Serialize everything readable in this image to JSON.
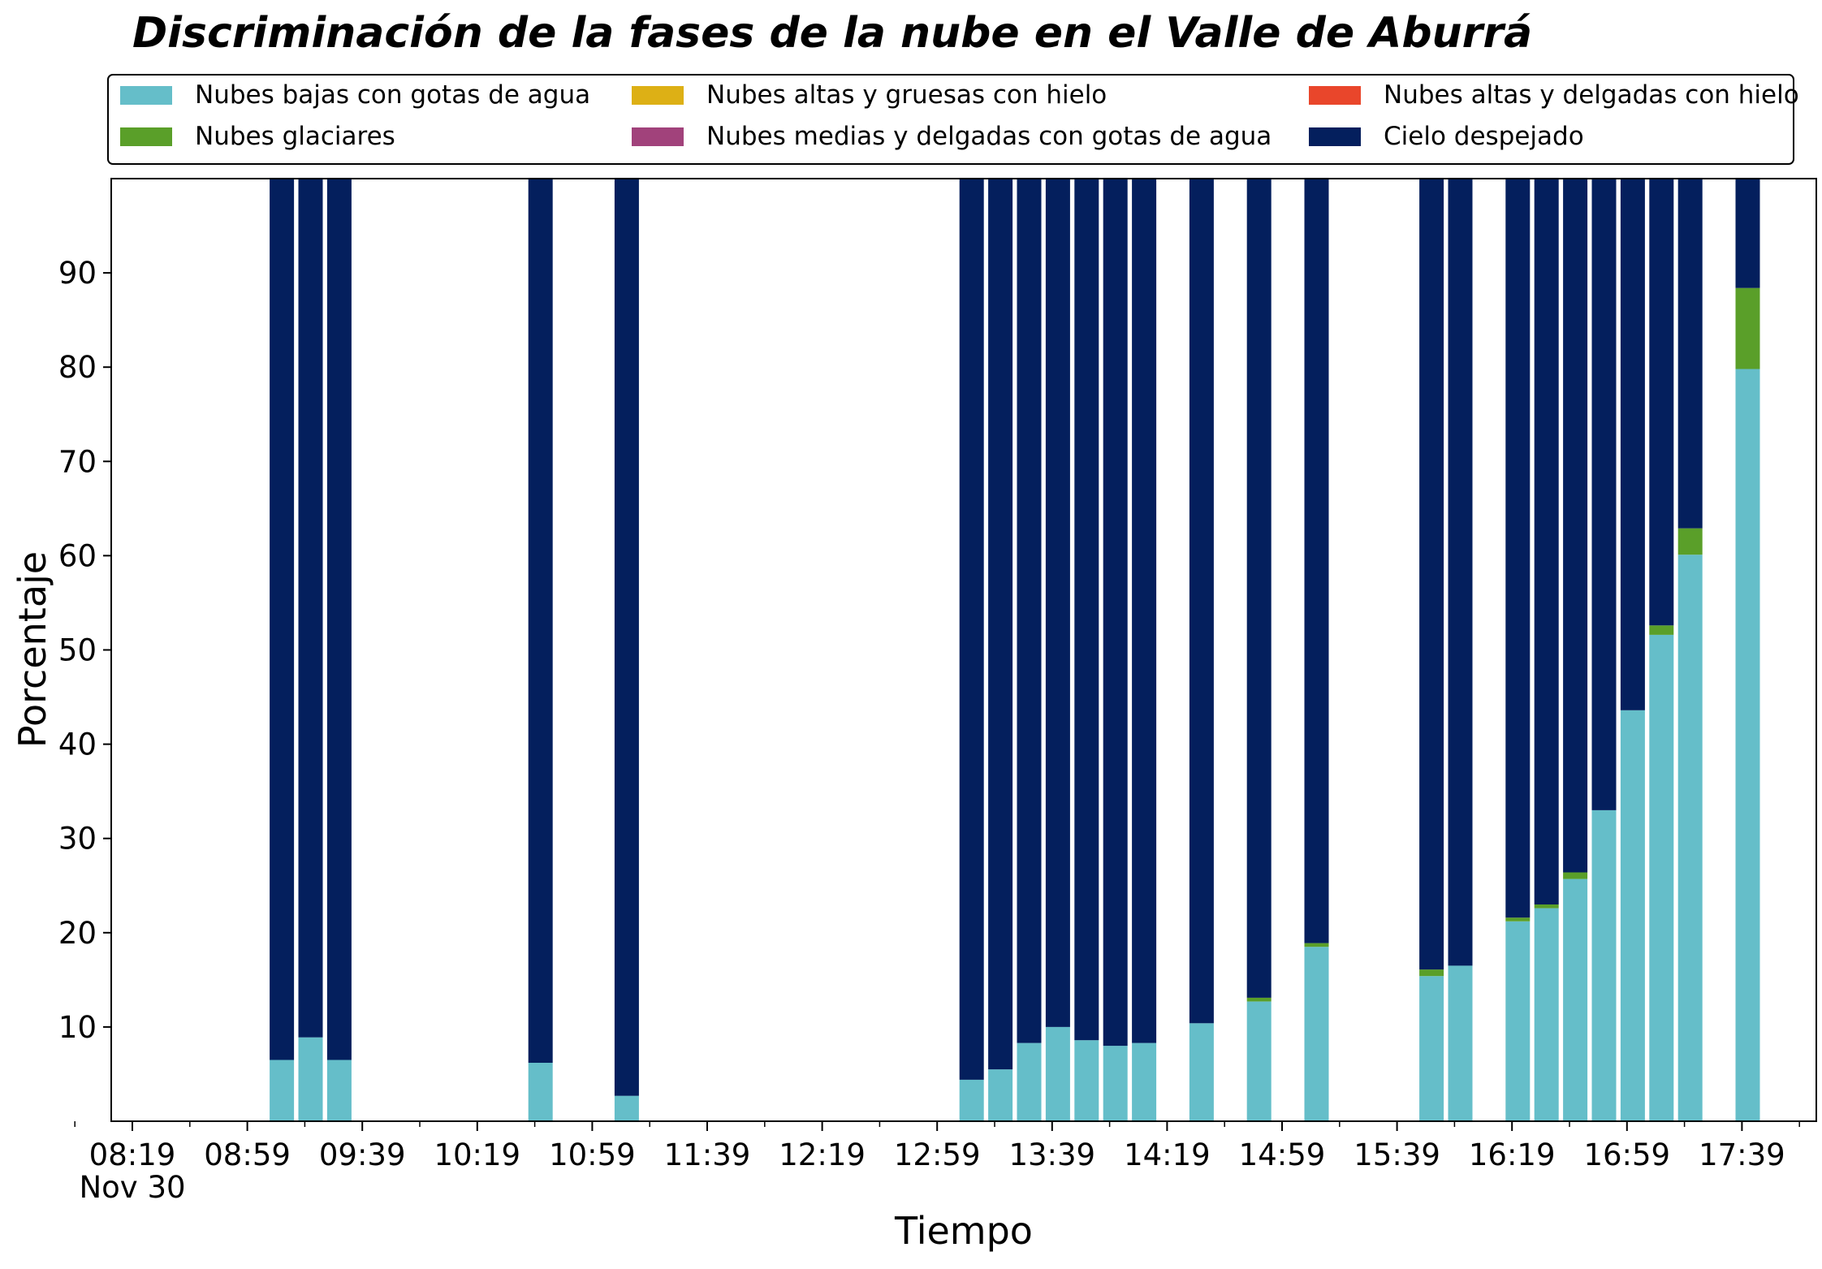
{
  "chart_data": {
    "type": "bar",
    "stacked": true,
    "title": "Discriminación de la fases de la nube en el Valle de Aburrá",
    "xlabel": "Tiempo",
    "ylabel": "Porcentaje",
    "ylim": [
      0,
      100
    ],
    "yticks": [
      "10",
      "20",
      "30",
      "40",
      "50",
      "60",
      "70",
      "80",
      "90"
    ],
    "xticks": [
      "08:19",
      "08:59",
      "09:39",
      "10:19",
      "10:59",
      "11:39",
      "12:19",
      "12:59",
      "13:39",
      "14:19",
      "14:59",
      "15:39",
      "16:19",
      "16:59",
      "17:39"
    ],
    "x_date_label": "Nov 30",
    "grid": false,
    "legend_position": "top",
    "categories": [
      "09:11",
      "09:21",
      "09:31",
      "10:41",
      "11:11",
      "13:11",
      "13:21",
      "13:31",
      "13:41",
      "13:51",
      "14:01",
      "14:11",
      "14:31",
      "14:51",
      "15:11",
      "15:51",
      "16:01",
      "16:21",
      "16:31",
      "16:41",
      "16:51",
      "17:01",
      "17:11",
      "17:21",
      "17:41"
    ],
    "series": [
      {
        "name": "Nubes bajas con gotas de agua",
        "color": "#65BEC9",
        "values": [
          6.5,
          8.9,
          6.5,
          6.2,
          2.7,
          4.4,
          5.5,
          8.3,
          10.0,
          8.6,
          8.0,
          8.3,
          10.4,
          12.7,
          18.5,
          15.4,
          16.5,
          21.2,
          22.6,
          25.7,
          33.0,
          43.6,
          51.6,
          60.1,
          79.8
        ]
      },
      {
        "name": "Nubes glaciares",
        "color": "#5A9F29",
        "values": [
          0,
          0,
          0,
          0,
          0,
          0,
          0,
          0,
          0,
          0,
          0,
          0,
          0,
          0.4,
          0.4,
          0.7,
          0,
          0.4,
          0.4,
          0.7,
          0,
          0,
          1.0,
          2.8,
          8.6
        ]
      },
      {
        "name": "Nubes altas y gruesas con hielo",
        "color": "#DDB015",
        "values": [
          0,
          0,
          0,
          0,
          0,
          0,
          0,
          0,
          0,
          0,
          0,
          0,
          0,
          0,
          0,
          0,
          0,
          0,
          0,
          0,
          0,
          0,
          0,
          0,
          0
        ]
      },
      {
        "name": "Nubes medias y delgadas con gotas de agua",
        "color": "#A1427B",
        "values": [
          0,
          0,
          0,
          0,
          0,
          0,
          0,
          0,
          0,
          0,
          0,
          0,
          0,
          0,
          0,
          0,
          0,
          0,
          0,
          0,
          0,
          0,
          0,
          0,
          0
        ]
      },
      {
        "name": "Nubes altas y delgadas con hielo",
        "color": "#E9462B",
        "values": [
          0,
          0,
          0,
          0,
          0,
          0,
          0,
          0,
          0,
          0,
          0,
          0,
          0,
          0,
          0,
          0,
          0,
          0,
          0,
          0,
          0,
          0,
          0,
          0,
          0
        ]
      },
      {
        "name": "Cielo despejado",
        "color": "#041F5D",
        "values": [
          93.5,
          91.1,
          93.5,
          93.8,
          97.3,
          95.6,
          94.5,
          91.7,
          90.0,
          91.4,
          92.0,
          91.7,
          89.6,
          86.9,
          81.1,
          83.9,
          83.5,
          78.4,
          77.0,
          73.6,
          67.0,
          56.4,
          47.4,
          37.1,
          11.6
        ]
      }
    ]
  }
}
